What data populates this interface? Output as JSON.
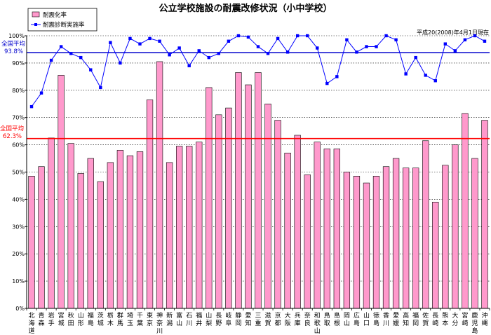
{
  "chart_data": {
    "type": "bar",
    "title": "公立学校施設の耐震改修状況（小中学校）",
    "note": "平成20(2008)年4月1日現在",
    "ylim": [
      0,
      100
    ],
    "yticks": [
      "0%",
      "10%",
      "20%",
      "30%",
      "40%",
      "50%",
      "60%",
      "70%",
      "80%",
      "90%",
      "100%"
    ],
    "legend": {
      "bar_label": "耐震化率",
      "line_label": "耐震診断実施率",
      "placement": "top-left"
    },
    "categories": [
      "北海道",
      "青森",
      "岩手",
      "宮城",
      "秋田",
      "山形",
      "福島",
      "茨城",
      "栃木",
      "群馬",
      "埼玉",
      "千葉",
      "東京",
      "神奈川",
      "新潟",
      "富山",
      "石川",
      "福井",
      "山梨",
      "長野",
      "岐阜",
      "静岡",
      "愛知",
      "三重",
      "滋賀",
      "京都",
      "大阪",
      "兵庫",
      "奈良",
      "和歌山",
      "鳥取",
      "島根",
      "岡山",
      "広島",
      "山口",
      "徳島",
      "香川",
      "愛媛",
      "高知",
      "福岡",
      "佐賀",
      "長崎",
      "熊本",
      "大分",
      "宮崎",
      "鹿児島",
      "沖縄"
    ],
    "series": [
      {
        "name": "耐震化率",
        "kind": "bar",
        "color": "#ff99cc",
        "values": [
          48.5,
          52,
          62.5,
          85.5,
          60.5,
          49.5,
          55,
          46.5,
          53.5,
          58,
          56,
          57.5,
          76.5,
          90.5,
          53.5,
          59.5,
          59.5,
          61,
          81,
          71,
          73.5,
          86.5,
          82,
          86.5,
          75,
          69,
          57,
          63.5,
          49,
          61,
          58.5,
          58.5,
          50,
          48.5,
          46,
          48.5,
          52,
          55,
          51.5,
          51.5,
          61.5,
          39,
          52.5,
          60,
          71.5,
          55,
          69
        ]
      },
      {
        "name": "耐震診断実施率",
        "kind": "line",
        "color": "#0000ff",
        "values": [
          74,
          79,
          91,
          96,
          93.5,
          92,
          87.5,
          81,
          97.5,
          90,
          99,
          97,
          99,
          98,
          93,
          95.5,
          89,
          94.5,
          92,
          93.5,
          98,
          100,
          99.5,
          96,
          93.5,
          99,
          94,
          100,
          100,
          95.5,
          82.5,
          85,
          98.5,
          94,
          96,
          96,
          100,
          98.5,
          86,
          92,
          85.5,
          83.5,
          97,
          94.5,
          98.5,
          100,
          98
        ]
      }
    ],
    "reference_lines": [
      {
        "label": "全国平均",
        "value_text": "62.3%",
        "value": 62.3,
        "color": "#ff0000"
      },
      {
        "label": "全国平均",
        "value_text": "93.8%",
        "value": 93.8,
        "color": "#0000cc"
      }
    ]
  }
}
